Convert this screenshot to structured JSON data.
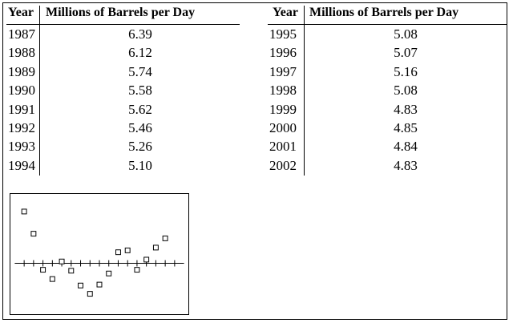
{
  "tables": [
    {
      "year_header": "Year",
      "value_header": "Millions of Barrels per Day",
      "rows": [
        {
          "year": "1987",
          "value": "6.39"
        },
        {
          "year": "1988",
          "value": "6.12"
        },
        {
          "year": "1989",
          "value": "5.74"
        },
        {
          "year": "1990",
          "value": "5.58"
        },
        {
          "year": "1991",
          "value": "5.62"
        },
        {
          "year": "1992",
          "value": "5.46"
        },
        {
          "year": "1993",
          "value": "5.26"
        },
        {
          "year": "1994",
          "value": "5.10"
        }
      ]
    },
    {
      "year_header": "Year",
      "value_header": "Millions of Barrels per Day",
      "rows": [
        {
          "year": "1995",
          "value": "5.08"
        },
        {
          "year": "1996",
          "value": "5.07"
        },
        {
          "year": "1997",
          "value": "5.16"
        },
        {
          "year": "1998",
          "value": "5.08"
        },
        {
          "year": "1999",
          "value": "4.83"
        },
        {
          "year": "2000",
          "value": "4.85"
        },
        {
          "year": "2001",
          "value": "4.84"
        },
        {
          "year": "2002",
          "value": "4.83"
        }
      ]
    }
  ],
  "chart_data": {
    "type": "scatter",
    "marker": "hollow-square",
    "x": [
      1,
      2,
      3,
      4,
      5,
      6,
      7,
      8,
      9,
      10,
      11,
      12,
      13,
      14,
      15,
      16
    ],
    "y": [
      0.56,
      0.32,
      -0.07,
      -0.17,
      0.02,
      -0.08,
      -0.24,
      -0.33,
      -0.23,
      -0.11,
      0.12,
      0.14,
      -0.07,
      0.04,
      0.17,
      0.27
    ],
    "xlim": [
      0,
      18
    ],
    "ylim": [
      -0.55,
      0.75
    ],
    "x_ticks": 18,
    "grid": false,
    "legend": "none"
  }
}
